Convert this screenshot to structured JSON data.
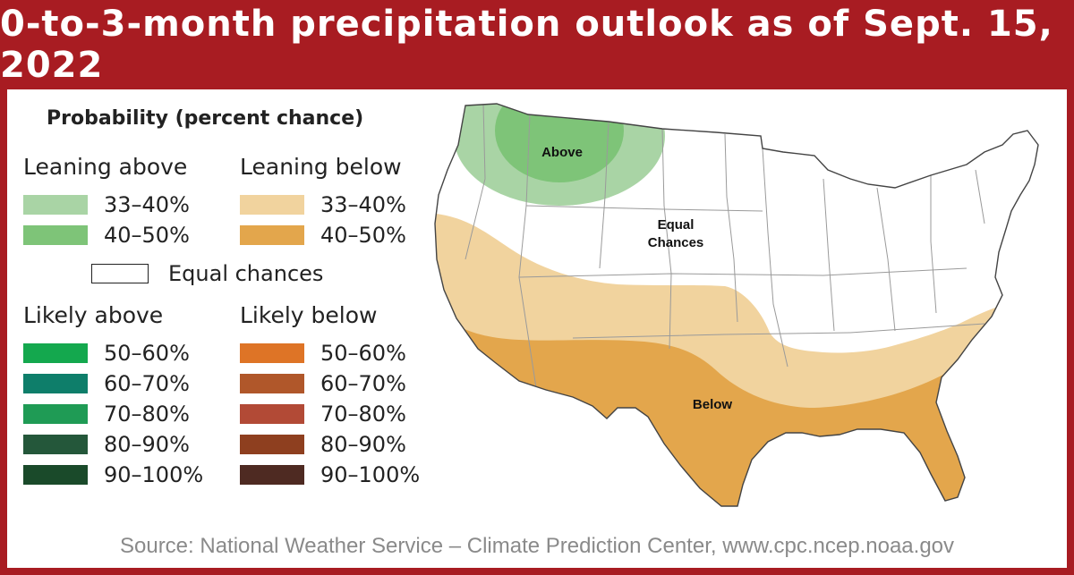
{
  "title": "0-to-3-month precipitation outlook as of Sept. 15, 2022",
  "legend": {
    "title": "Probability (percent chance)",
    "leaning_above": {
      "header": "Leaning above",
      "items": [
        {
          "label": "33–40%",
          "color": "#a9d4a5"
        },
        {
          "label": "40–50%",
          "color": "#7ec478"
        }
      ]
    },
    "leaning_below": {
      "header": "Leaning below",
      "items": [
        {
          "label": "33–40%",
          "color": "#f1d39e"
        },
        {
          "label": "40–50%",
          "color": "#e3a64c"
        }
      ]
    },
    "equal_chances": "Equal chances",
    "likely_above": {
      "header": "Likely above",
      "items": [
        {
          "label": "50–60%",
          "color": "#14a84e"
        },
        {
          "label": "60–70%",
          "color": "#0e7e6a"
        },
        {
          "label": "70–80%",
          "color": "#1f9b55"
        },
        {
          "label": "80–90%",
          "color": "#24573a"
        },
        {
          "label": "90–100%",
          "color": "#1a4a2a"
        }
      ]
    },
    "likely_below": {
      "header": "Likely below",
      "items": [
        {
          "label": "50–60%",
          "color": "#de7426"
        },
        {
          "label": "60–70%",
          "color": "#b0572a"
        },
        {
          "label": "70–80%",
          "color": "#b24a36"
        },
        {
          "label": "80–90%",
          "color": "#8e3f1f"
        },
        {
          "label": "90–100%",
          "color": "#4e2a22"
        }
      ]
    }
  },
  "map": {
    "label_above": "Above",
    "label_equal_1": "Equal",
    "label_equal_2": "Chances",
    "label_below": "Below",
    "colors": {
      "above_light": "#a9d4a5",
      "above_dark": "#7ec478",
      "below_light": "#f1d39e",
      "below_dark": "#e3a64c",
      "equal": "#ffffff",
      "border": "#444444"
    }
  },
  "source": "Source: National Weather Service – Climate Prediction Center, www.cpc.ncep.noaa.gov"
}
